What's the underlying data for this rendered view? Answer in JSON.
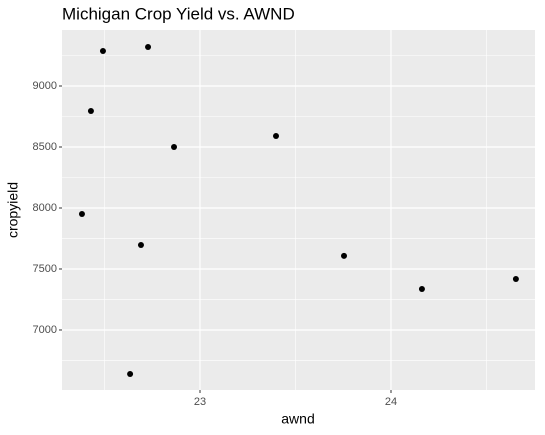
{
  "chart_data": {
    "type": "scatter",
    "title": "Michigan Crop Yield vs. AWND",
    "x_label": "awnd",
    "y_label": "cropyield",
    "x": [
      22.382,
      22.429,
      22.492,
      22.634,
      22.691,
      22.728,
      22.864,
      23.398,
      23.754,
      24.162,
      24.654
    ],
    "values": [
      7951,
      8795,
      9287,
      6639,
      7697,
      9320,
      8500,
      8590,
      7607,
      7336,
      7418
    ],
    "color": "#000000",
    "xlim": [
      22.2775,
      24.754
    ],
    "xticks": [
      23,
      24
    ],
    "ylim": [
      6508,
      9459
    ],
    "yticks": [
      7000,
      7500,
      8000,
      8500,
      9000
    ],
    "grid": true
  }
}
